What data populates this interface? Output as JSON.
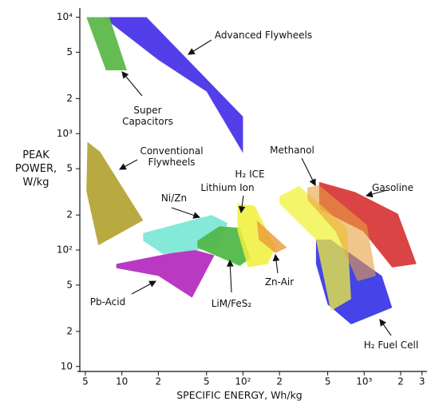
{
  "chart_data": {
    "type": "region",
    "xlabel": "SPECIFIC ENERGY, Wh/kg",
    "ylabel": "PEAK POWER, W/kg",
    "xscale": "log",
    "yscale": "log",
    "xlim": [
      4.5,
      3300
    ],
    "ylim": [
      9.5,
      12000
    ],
    "xticks": [
      5,
      10,
      {
        "value": 20,
        "label": "2"
      },
      {
        "value": 50,
        "label": "5"
      },
      {
        "value": 100,
        "label": "10²"
      },
      {
        "value": 200,
        "label": "2"
      },
      {
        "value": 500,
        "label": "5"
      },
      {
        "value": 1000,
        "label": "10³"
      },
      {
        "value": 2000,
        "label": "2"
      },
      {
        "value": 3000,
        "label": "3"
      }
    ],
    "yticks": [
      10,
      {
        "value": 20,
        "label": "2"
      },
      {
        "value": 50,
        "label": "5"
      },
      {
        "value": 100,
        "label": "10²"
      },
      {
        "value": 200,
        "label": "2"
      },
      {
        "value": 500,
        "label": "5"
      },
      {
        "value": 1000,
        "label": "10³"
      },
      {
        "value": 2000,
        "label": "2"
      },
      {
        "value": 5000,
        "label": "5"
      },
      {
        "value": 10000,
        "label": "10⁴"
      }
    ],
    "series": [
      {
        "name": "Conventional Flywheels",
        "color": "#b5a437",
        "x": [
          5.2,
          6.6,
          15,
          6.4,
          5.1
        ],
        "values": [
          850,
          700,
          180,
          110,
          320
        ]
      },
      {
        "name": "Advanced Flywheels",
        "color": "#4a35e8",
        "x": [
          7,
          16,
          100,
          100,
          50,
          20
        ],
        "values": [
          10000,
          10000,
          1400,
          680,
          2300,
          4300
        ]
      },
      {
        "name": "Super Capacitors",
        "color": "#5cb84a",
        "x": [
          5.1,
          7.9,
          11,
          7.4
        ],
        "values": [
          10000,
          10000,
          3500,
          3500
        ]
      },
      {
        "name": "Pb-Acid",
        "color": "#b52ec0",
        "x": [
          9,
          38,
          58,
          38,
          20,
          9
        ],
        "values": [
          76,
          102,
          90,
          39,
          60,
          70
        ]
      },
      {
        "name": "Ni/Zn",
        "color": "#7ee8d6",
        "x": [
          15,
          55,
          75,
          60,
          22,
          15
        ],
        "values": [
          140,
          200,
          170,
          105,
          92,
          120
        ]
      },
      {
        "name": "LiM/FeS₂",
        "color": "#52b84a",
        "x": [
          42,
          64,
          94,
          115,
          94,
          42
        ],
        "values": [
          120,
          160,
          155,
          85,
          73,
          105
        ]
      },
      {
        "name": "Lithium Ion",
        "color": "#f0f03a",
        "x": [
          90,
          125,
          185,
          160,
          110,
          90
        ],
        "values": [
          250,
          240,
          105,
          76,
          71,
          145
        ]
      },
      {
        "name": "Zn-Air",
        "color": "#e89a3a",
        "x": [
          130,
          230,
          185,
          135
        ],
        "values": [
          180,
          105,
          94,
          123
        ]
      },
      {
        "name": "Gasoline",
        "color": "#d83a3a",
        "x": [
          425,
          840,
          1900,
          2700,
          1700,
          980,
          425
        ],
        "values": [
          385,
          315,
          205,
          76,
          71,
          145,
          225
        ]
      },
      {
        "name": "H₂ Fuel Cell",
        "color": "#3a3ae8",
        "x": [
          400,
          530,
          1400,
          1700,
          780,
          500,
          400
        ],
        "values": [
          123,
          123,
          60,
          32,
          23,
          34,
          76
        ]
      },
      {
        "name": "Methanol",
        "color": "#f2f23a",
        "x": [
          200,
          290,
          720,
          780,
          530,
          400,
          200
        ],
        "values": [
          290,
          355,
          155,
          38,
          30,
          123,
          250
        ]
      },
      {
        "color": "#e8a040",
        "x": [
          340,
          425,
          1050,
          1250,
          880,
          580,
          340
        ],
        "values": [
          345,
          360,
          165,
          60,
          54,
          145,
          270
        ]
      }
    ],
    "annotations": [
      "H₂ ICE"
    ]
  }
}
